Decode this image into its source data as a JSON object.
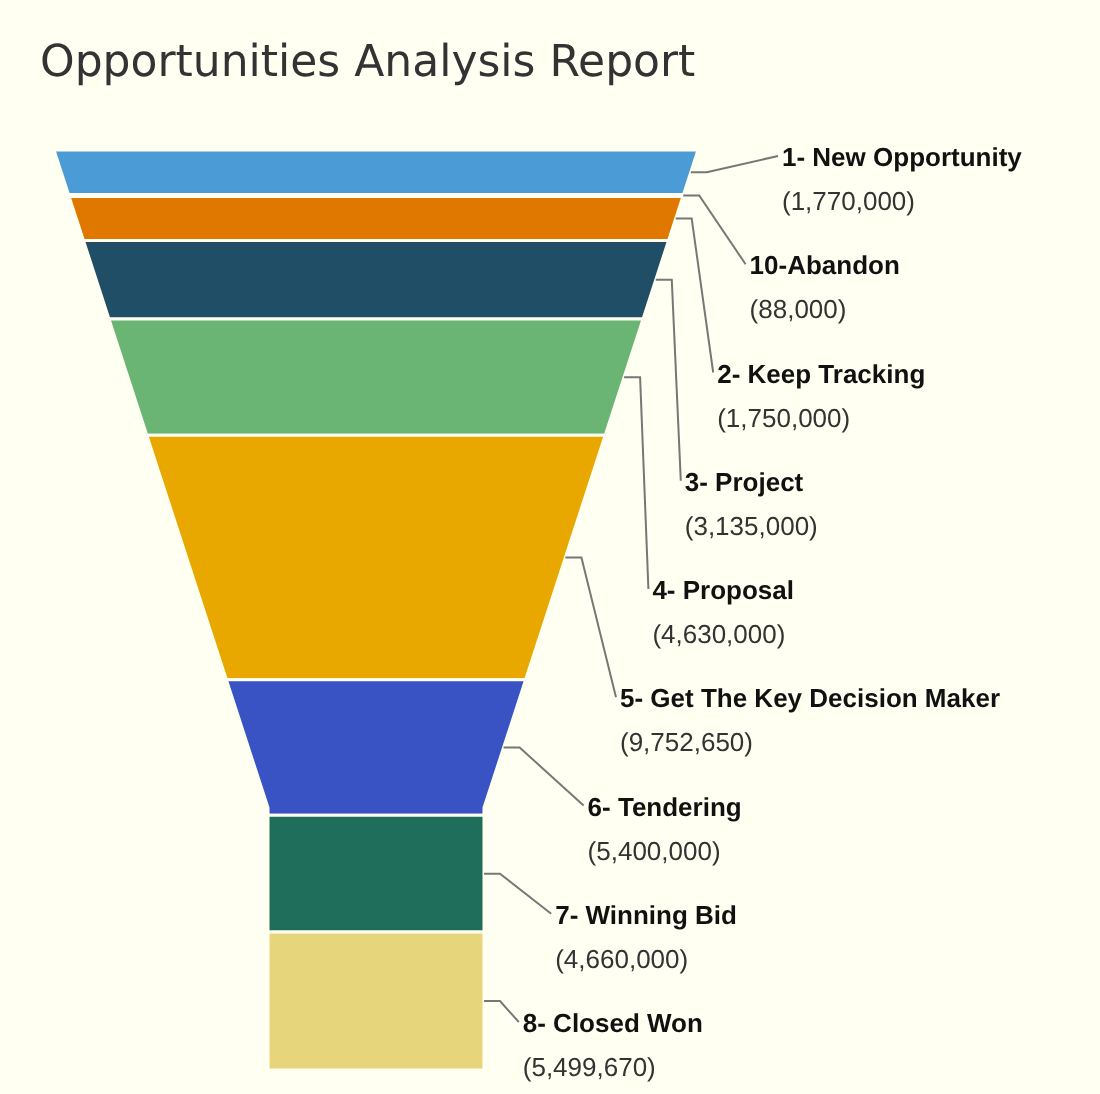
{
  "chart_data": {
    "type": "other",
    "title": "Opportunities Analysis Report",
    "categories": [
      "1- New Opportunity",
      "10-Abandon",
      "2- Keep Tracking",
      "3- Project",
      "4- Proposal",
      "5- Get The Key Decision Maker",
      "6- Tendering",
      "7- Winning Bid",
      "8- Closed Won"
    ],
    "values": [
      1770000,
      88000,
      1750000,
      3135000,
      4630000,
      9752650,
      5400000,
      4660000,
      5499670
    ],
    "colors": [
      "#4a9bd6",
      "#8e44ad",
      "#e07800",
      "#1f4e66",
      "#6ab574",
      "#e8a800",
      "#3953c4",
      "#1f6e5c",
      "#e6d57a"
    ],
    "value_labels": [
      "(1,770,000)",
      "(88,000)",
      "(1,750,000)",
      "(3,135,000)",
      "(4,630,000)",
      "(9,752,650)",
      "(5,400,000)",
      "(4,660,000)",
      "(5,499,670)"
    ]
  }
}
